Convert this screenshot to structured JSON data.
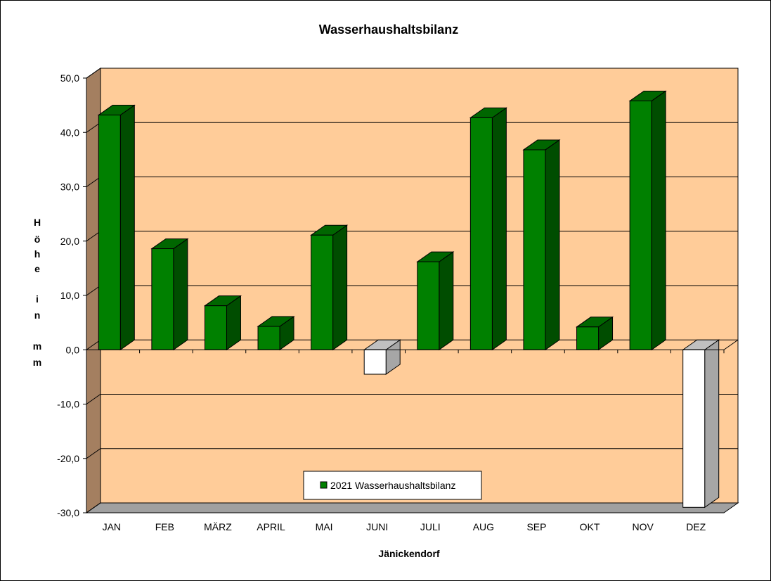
{
  "chart_data": {
    "type": "bar",
    "title": "Wasserhaushaltsbilanz",
    "xlabel": "Jänickendorf",
    "ylabel": "Höhe in mm",
    "ylabel_letters": [
      "H",
      "ö",
      "h",
      "e",
      "",
      "i",
      "n",
      "",
      "m",
      "m"
    ],
    "categories": [
      "JAN",
      "FEB",
      "MÄRZ",
      "APRIL",
      "MAI",
      "JUNI",
      "JULI",
      "AUG",
      "SEP",
      "OKT",
      "NOV",
      "DEZ"
    ],
    "series": [
      {
        "name": "2021 Wasserhaushaltsbilanz",
        "values": [
          43.2,
          18.6,
          8.1,
          4.3,
          21.1,
          -4.5,
          16.2,
          42.7,
          36.8,
          4.2,
          45.8,
          -29.0
        ]
      }
    ],
    "yticks": [
      "50,0",
      "40,0",
      "30,0",
      "20,0",
      "10,0",
      "0,0",
      "-10,0",
      "-20,0",
      "-30,0"
    ],
    "ylim": [
      -30,
      50
    ],
    "grid": true,
    "legend_position": "bottom-center",
    "colors": {
      "positive_front": "#008000",
      "positive_top": "#006600",
      "positive_side": "#004d00",
      "negative_front": "#ffffff",
      "negative_top": "#c0c0c0",
      "negative_side": "#a6a6a6",
      "back_wall": "#ffcc99",
      "side_wall": "#a47f60",
      "floor": "#a0a0a0"
    }
  }
}
